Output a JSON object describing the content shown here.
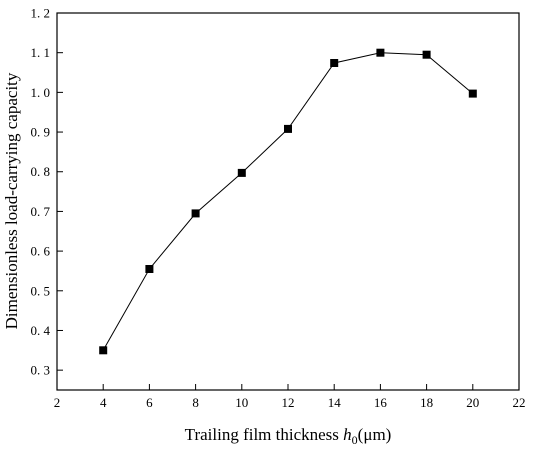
{
  "chart_data": {
    "type": "line",
    "xlabel_prefix": "Trailing film thickness ",
    "xlabel_var": "h",
    "xlabel_sub": "0",
    "xlabel_suffix": "(μm)",
    "ylabel": "Dimensionless load-carrying capacity",
    "xlim": [
      2,
      22
    ],
    "ylim": [
      0.25,
      1.2
    ],
    "x_ticks": [
      2,
      4,
      6,
      8,
      10,
      12,
      14,
      16,
      18,
      20,
      22
    ],
    "x_tick_labels": [
      "2",
      "4",
      "6",
      "8",
      "10",
      "12",
      "14",
      "16",
      "18",
      "20",
      "22"
    ],
    "y_ticks": [
      0.3,
      0.4,
      0.5,
      0.6,
      0.7,
      0.8,
      0.9,
      1.0,
      1.1,
      1.2
    ],
    "y_tick_labels": [
      "0. 3",
      "0. 4",
      "0. 5",
      "0. 6",
      "0. 7",
      "0. 8",
      "0. 9",
      "1. 0",
      "1. 1",
      "1. 2"
    ],
    "grid": false,
    "marker": "square",
    "color": "#000000",
    "x": [
      4,
      6,
      8,
      10,
      12,
      14,
      16,
      18,
      20
    ],
    "y": [
      0.35,
      0.555,
      0.695,
      0.797,
      0.908,
      1.074,
      1.1,
      1.095,
      0.997
    ]
  }
}
